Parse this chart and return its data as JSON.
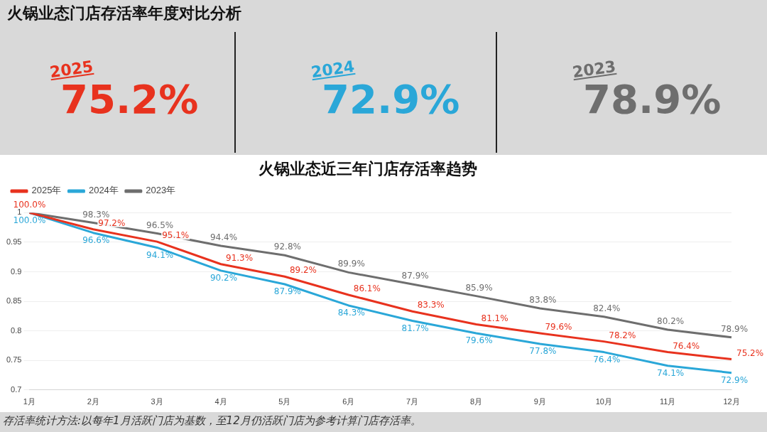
{
  "chart_data": [
    {
      "type": "other",
      "title": "火锅业态门店存活率年度对比分析",
      "annotations": [
        "2025",
        "75.2%",
        "2024",
        "72.9%",
        "2023",
        "78.9%"
      ]
    },
    {
      "type": "line",
      "title": "火锅业态近三年门店存活率趋势",
      "categories": [
        "1月",
        "2月",
        "3月",
        "4月",
        "5月",
        "6月",
        "7月",
        "8月",
        "9月",
        "10月",
        "11月",
        "12月"
      ],
      "series": [
        {
          "name": "2025年",
          "color": "#e8321e",
          "values": [
            1.0,
            0.972,
            0.951,
            0.913,
            0.892,
            0.861,
            0.833,
            0.811,
            0.796,
            0.782,
            0.764,
            0.752
          ],
          "value_labels": [
            "100.0%",
            "97.2%",
            "95.1%",
            "91.3%",
            "89.2%",
            "86.1%",
            "83.3%",
            "81.1%",
            "79.6%",
            "78.2%",
            "76.4%",
            "75.2%"
          ]
        },
        {
          "name": "2024年",
          "color": "#2aa7d8",
          "values": [
            1.0,
            0.966,
            0.941,
            0.902,
            0.879,
            0.843,
            0.817,
            0.796,
            0.778,
            0.764,
            0.741,
            0.729
          ],
          "value_labels": [
            "100.0%",
            "96.6%",
            "94.1%",
            "90.2%",
            "87.9%",
            "84.3%",
            "81.7%",
            "79.6%",
            "77.8%",
            "76.4%",
            "74.1%",
            "72.9%"
          ]
        },
        {
          "name": "2023年",
          "color": "#6e6e6e",
          "values": [
            1.0,
            0.983,
            0.965,
            0.944,
            0.928,
            0.899,
            0.879,
            0.859,
            0.838,
            0.824,
            0.802,
            0.789
          ],
          "value_labels": [
            null,
            "98.3%",
            "96.5%",
            "94.4%",
            "92.8%",
            "89.9%",
            "87.9%",
            "85.9%",
            "83.8%",
            "82.4%",
            "80.2%",
            "78.9%"
          ]
        }
      ],
      "ylim": [
        0.7,
        1.0
      ],
      "yticks": [
        0.7,
        0.75,
        0.8,
        0.85,
        0.9,
        0.95,
        1
      ],
      "grid": "y",
      "legend": "top left",
      "marker": "none",
      "line_style": "solid",
      "annotations": [
        "存活率统计方法:以每年1月活跃门店为基数，至12月仍活跃门店为参考计算门店存活率。"
      ]
    }
  ]
}
